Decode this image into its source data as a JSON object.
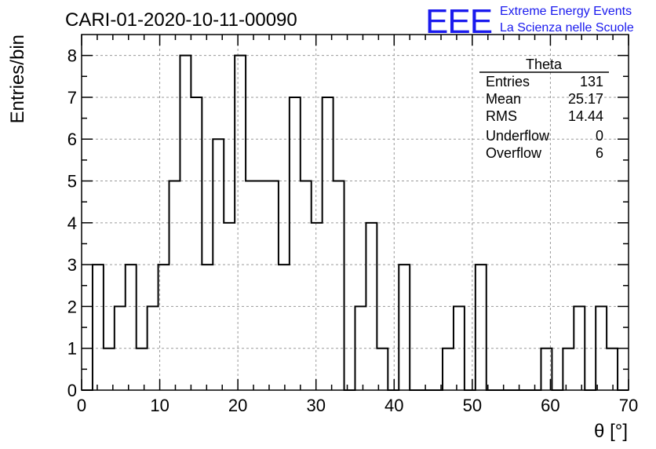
{
  "title": "CARI-01-2020-10-11-00090",
  "logo": {
    "mark": "EEE",
    "line1": "Extreme Energy Events",
    "line2": "La Scienza nelle Scuole",
    "color": "#1a1aee"
  },
  "stats": {
    "name": "Theta",
    "rows": [
      {
        "label": "Entries",
        "value": "131"
      },
      {
        "label": "Mean",
        "value": "25.17"
      },
      {
        "label": "RMS",
        "value": "14.44"
      },
      {
        "label": "Underflow",
        "value": "0"
      },
      {
        "label": "Overflow",
        "value": "6"
      }
    ]
  },
  "chart_data": {
    "type": "histogram",
    "title": "CARI-01-2020-10-11-00090",
    "xlabel": "θ [°]",
    "ylabel": "Entries/bin",
    "xlim": [
      0,
      70
    ],
    "ylim": [
      0,
      8.5
    ],
    "xticks": [
      0,
      10,
      20,
      30,
      40,
      50,
      60,
      70
    ],
    "yticks": [
      0,
      1,
      2,
      3,
      4,
      5,
      6,
      7,
      8
    ],
    "grid": true,
    "bin_width": 1.4,
    "bin_start": 0,
    "counts": [
      0,
      3,
      1,
      2,
      3,
      1,
      2,
      3,
      5,
      8,
      7,
      3,
      6,
      4,
      8,
      5,
      5,
      5,
      3,
      7,
      5,
      4,
      7,
      5,
      0,
      2,
      4,
      1,
      0,
      3,
      0,
      0,
      0,
      1,
      2,
      0,
      3,
      0,
      0,
      0,
      0,
      0,
      1,
      0,
      1,
      2,
      0,
      2,
      1,
      0
    ],
    "line_color": "#000000"
  }
}
